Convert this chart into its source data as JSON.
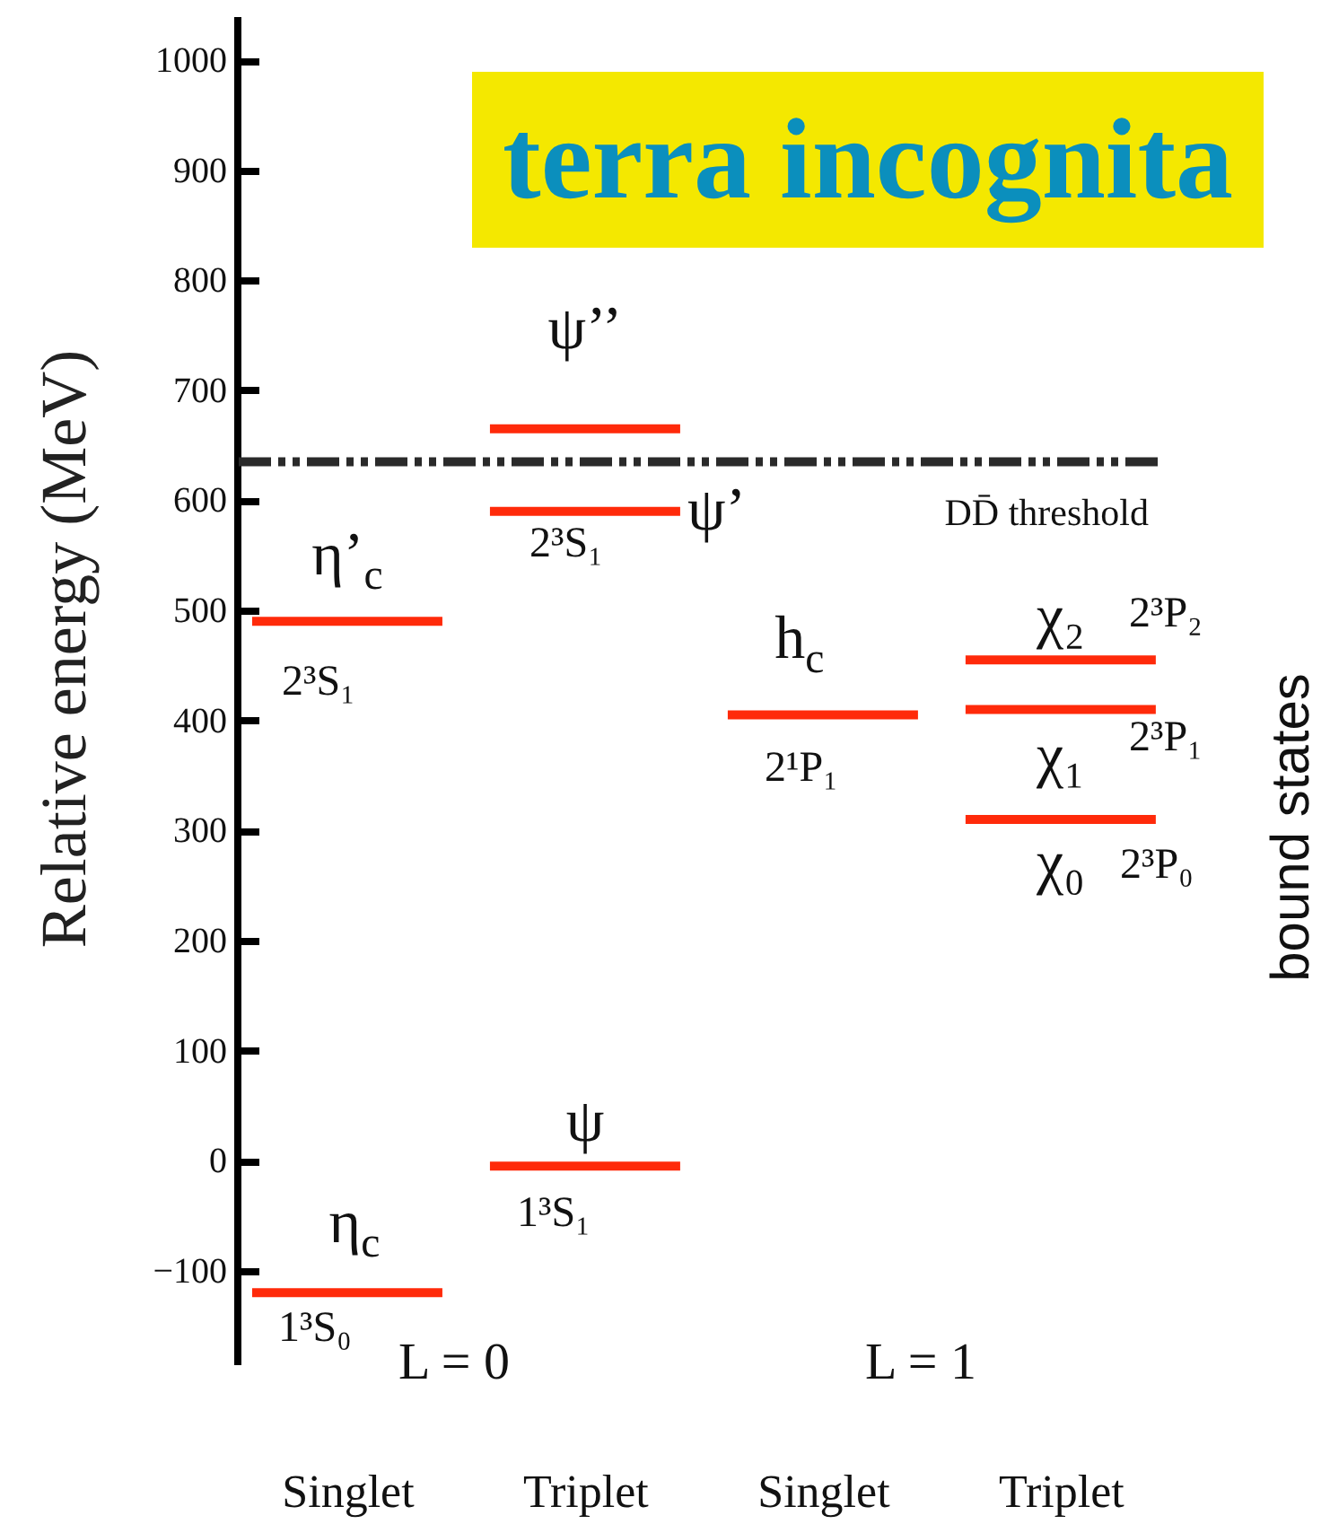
{
  "chart_data": {
    "type": "line",
    "ylabel": "Relative energy (MeV)",
    "categories": [
      null,
      null,
      "Singlet",
      null,
      null,
      null,
      null,
      "Triplet",
      null,
      null,
      null,
      null,
      "Singlet",
      null,
      null,
      null,
      null,
      "Triplet",
      null,
      null
    ],
    "ylim": [
      -185,
      1040
    ],
    "yticks": [
      -100,
      0,
      100,
      200,
      300,
      400,
      500,
      600,
      700,
      800,
      900,
      1000
    ],
    "series": [
      {
        "name": "η$_{c}$",
        "color": "#ff2a0a",
        "values": [
          -120,
          -120,
          -120,
          -120,
          -120,
          null,
          null,
          null,
          null,
          null,
          null,
          null,
          null,
          null,
          null,
          null,
          null,
          null,
          null,
          null
        ]
      },
      {
        "name": "η’$_{c}$",
        "color": "#ff2a0a",
        "values": [
          490,
          490,
          490,
          490,
          490,
          null,
          null,
          null,
          null,
          null,
          null,
          null,
          null,
          null,
          null,
          null,
          null,
          null,
          null,
          null
        ]
      },
      {
        "name": "ψ",
        "color": "#ff2a0a",
        "values": [
          null,
          null,
          null,
          null,
          null,
          -5,
          -5,
          -5,
          -5,
          -5,
          null,
          null,
          null,
          null,
          null,
          null,
          null,
          null,
          null,
          null
        ]
      },
      {
        "name": "ψ’",
        "color": "#ff2a0a",
        "values": [
          null,
          null,
          null,
          null,
          null,
          590,
          590,
          590,
          590,
          590,
          null,
          null,
          null,
          null,
          null,
          null,
          null,
          null,
          null,
          null
        ]
      },
      {
        "name": "ψ’’",
        "color": "#ff2a0a",
        "values": [
          null,
          null,
          null,
          null,
          null,
          665,
          665,
          665,
          665,
          665,
          null,
          null,
          null,
          null,
          null,
          null,
          null,
          null,
          null,
          null
        ]
      },
      {
        "name": "h$_{c}$",
        "color": "#ff2a0a",
        "values": [
          null,
          null,
          null,
          null,
          null,
          null,
          null,
          null,
          null,
          null,
          405,
          405,
          405,
          405,
          405,
          null,
          null,
          null,
          null,
          null
        ]
      },
      {
        "name": "χ₀",
        "color": "#ff2a0a",
        "values": [
          null,
          null,
          null,
          null,
          null,
          null,
          null,
          null,
          null,
          null,
          null,
          null,
          null,
          null,
          null,
          310,
          310,
          310,
          310,
          310
        ]
      },
      {
        "name": "χ₁",
        "color": "#ff2a0a",
        "values": [
          null,
          null,
          null,
          null,
          null,
          null,
          null,
          null,
          null,
          null,
          null,
          null,
          null,
          null,
          null,
          410,
          410,
          410,
          410,
          410
        ]
      },
      {
        "name": "χ₂",
        "color": "#ff2a0a",
        "values": [
          null,
          null,
          null,
          null,
          null,
          null,
          null,
          null,
          null,
          null,
          null,
          null,
          null,
          null,
          null,
          455,
          455,
          455,
          455,
          455
        ]
      }
    ],
    "ref_lines": [
      {
        "axis": "y",
        "value": 635,
        "label": "DD̄ threshold",
        "color": "#2a2a2a",
        "line_style": "dashed"
      }
    ],
    "annotations": [
      "terra incognita",
      "bound states",
      "L = 0",
      "L = 1",
      "1³S₀",
      "1³S₁",
      "2³S₁",
      "2³S₁",
      "2¹P₁",
      "2³P₂",
      "2³P₁",
      "2³P₀"
    ]
  }
}
